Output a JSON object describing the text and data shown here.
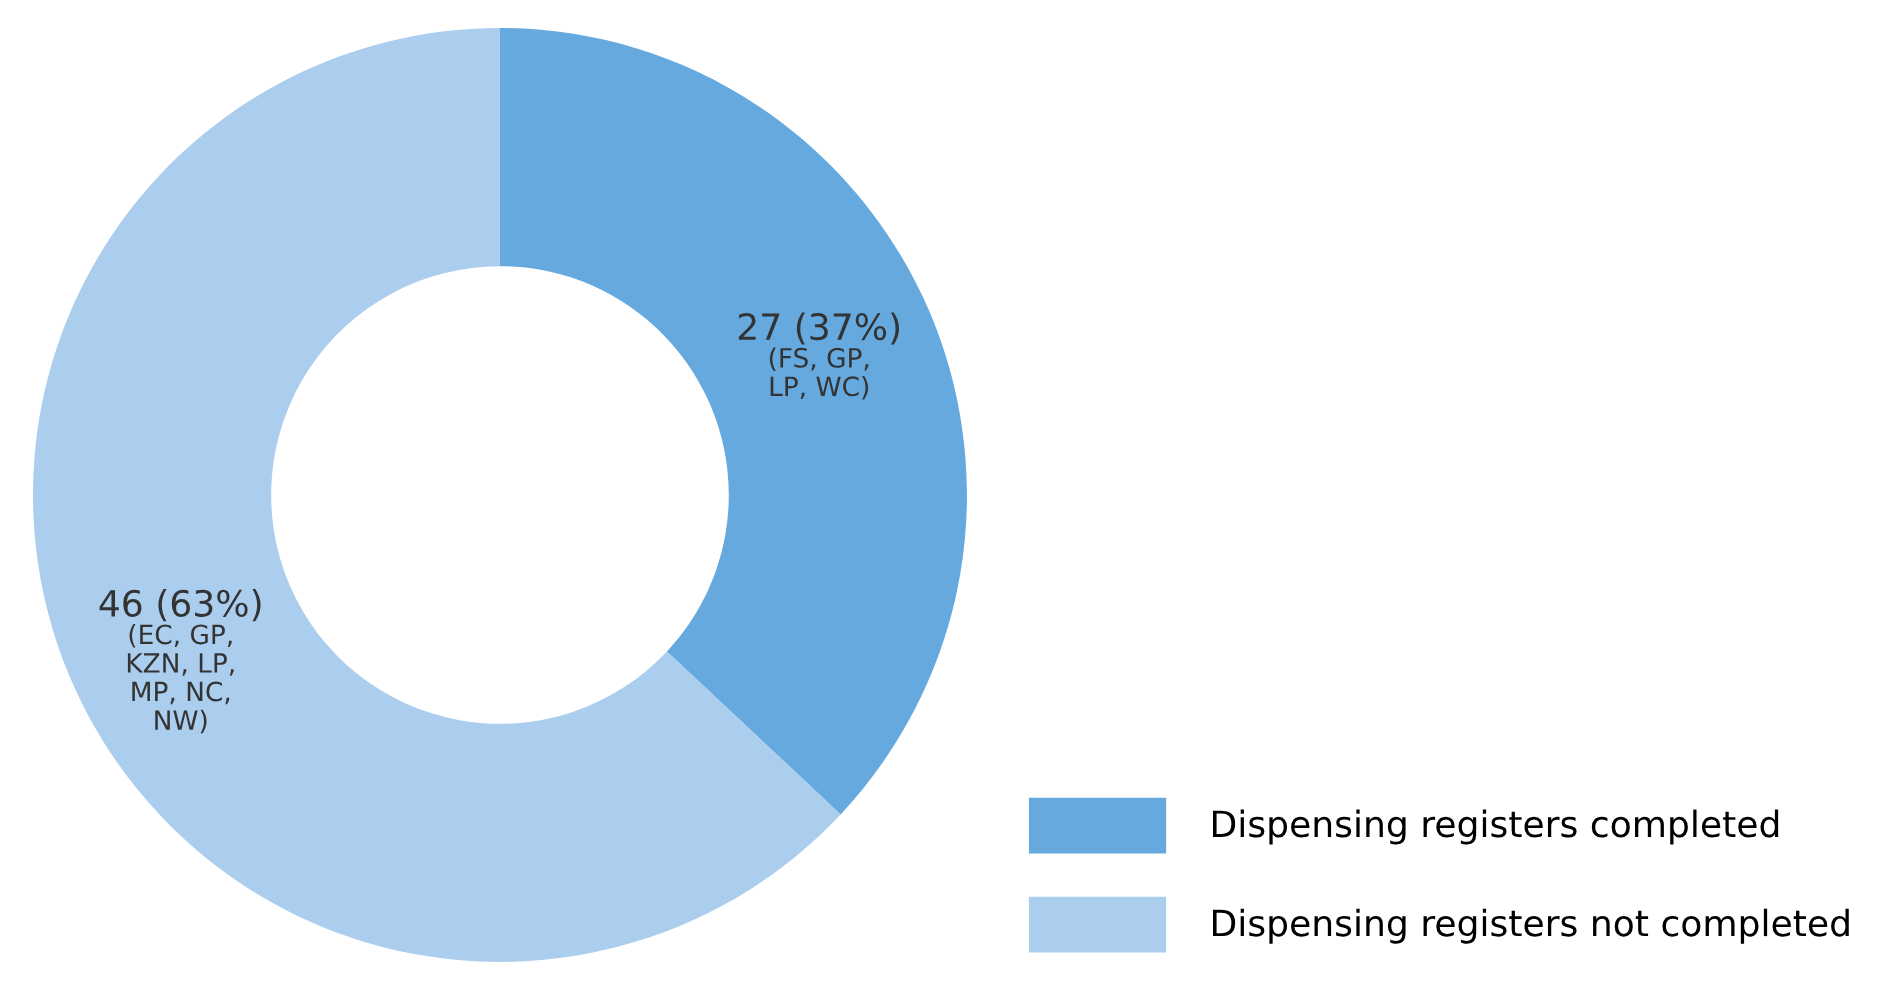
{
  "chart_data": {
    "type": "donut",
    "categories": [
      "Dispensing registers completed",
      "Dispensing registers not completed"
    ],
    "values": [
      27,
      46
    ],
    "colors": [
      "#65a9de",
      "#abcdee"
    ],
    "value_labels": [
      "27 (37%)\n(FS, GP,\nLP, WC)",
      "46 (63%)\n(EC, GP,\nKZN, LP,\nMP, NC,\nNW)"
    ],
    "legend": "bottom right"
  }
}
